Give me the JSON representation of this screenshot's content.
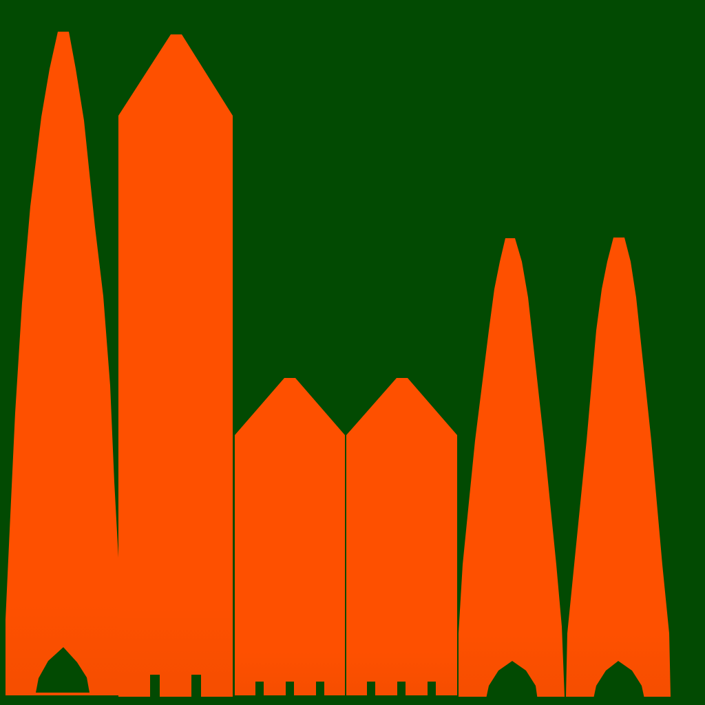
{
  "scene": {
    "background_color": "#024a02",
    "shape_color": "#fe5000",
    "shapes": [
      {
        "kind": "tall-pointed-spire"
      },
      {
        "kind": "tall-gabled-tower"
      },
      {
        "kind": "short-gabled-block"
      },
      {
        "kind": "short-gabled-block"
      },
      {
        "kind": "pointed-spire"
      },
      {
        "kind": "pointed-spire"
      }
    ]
  }
}
